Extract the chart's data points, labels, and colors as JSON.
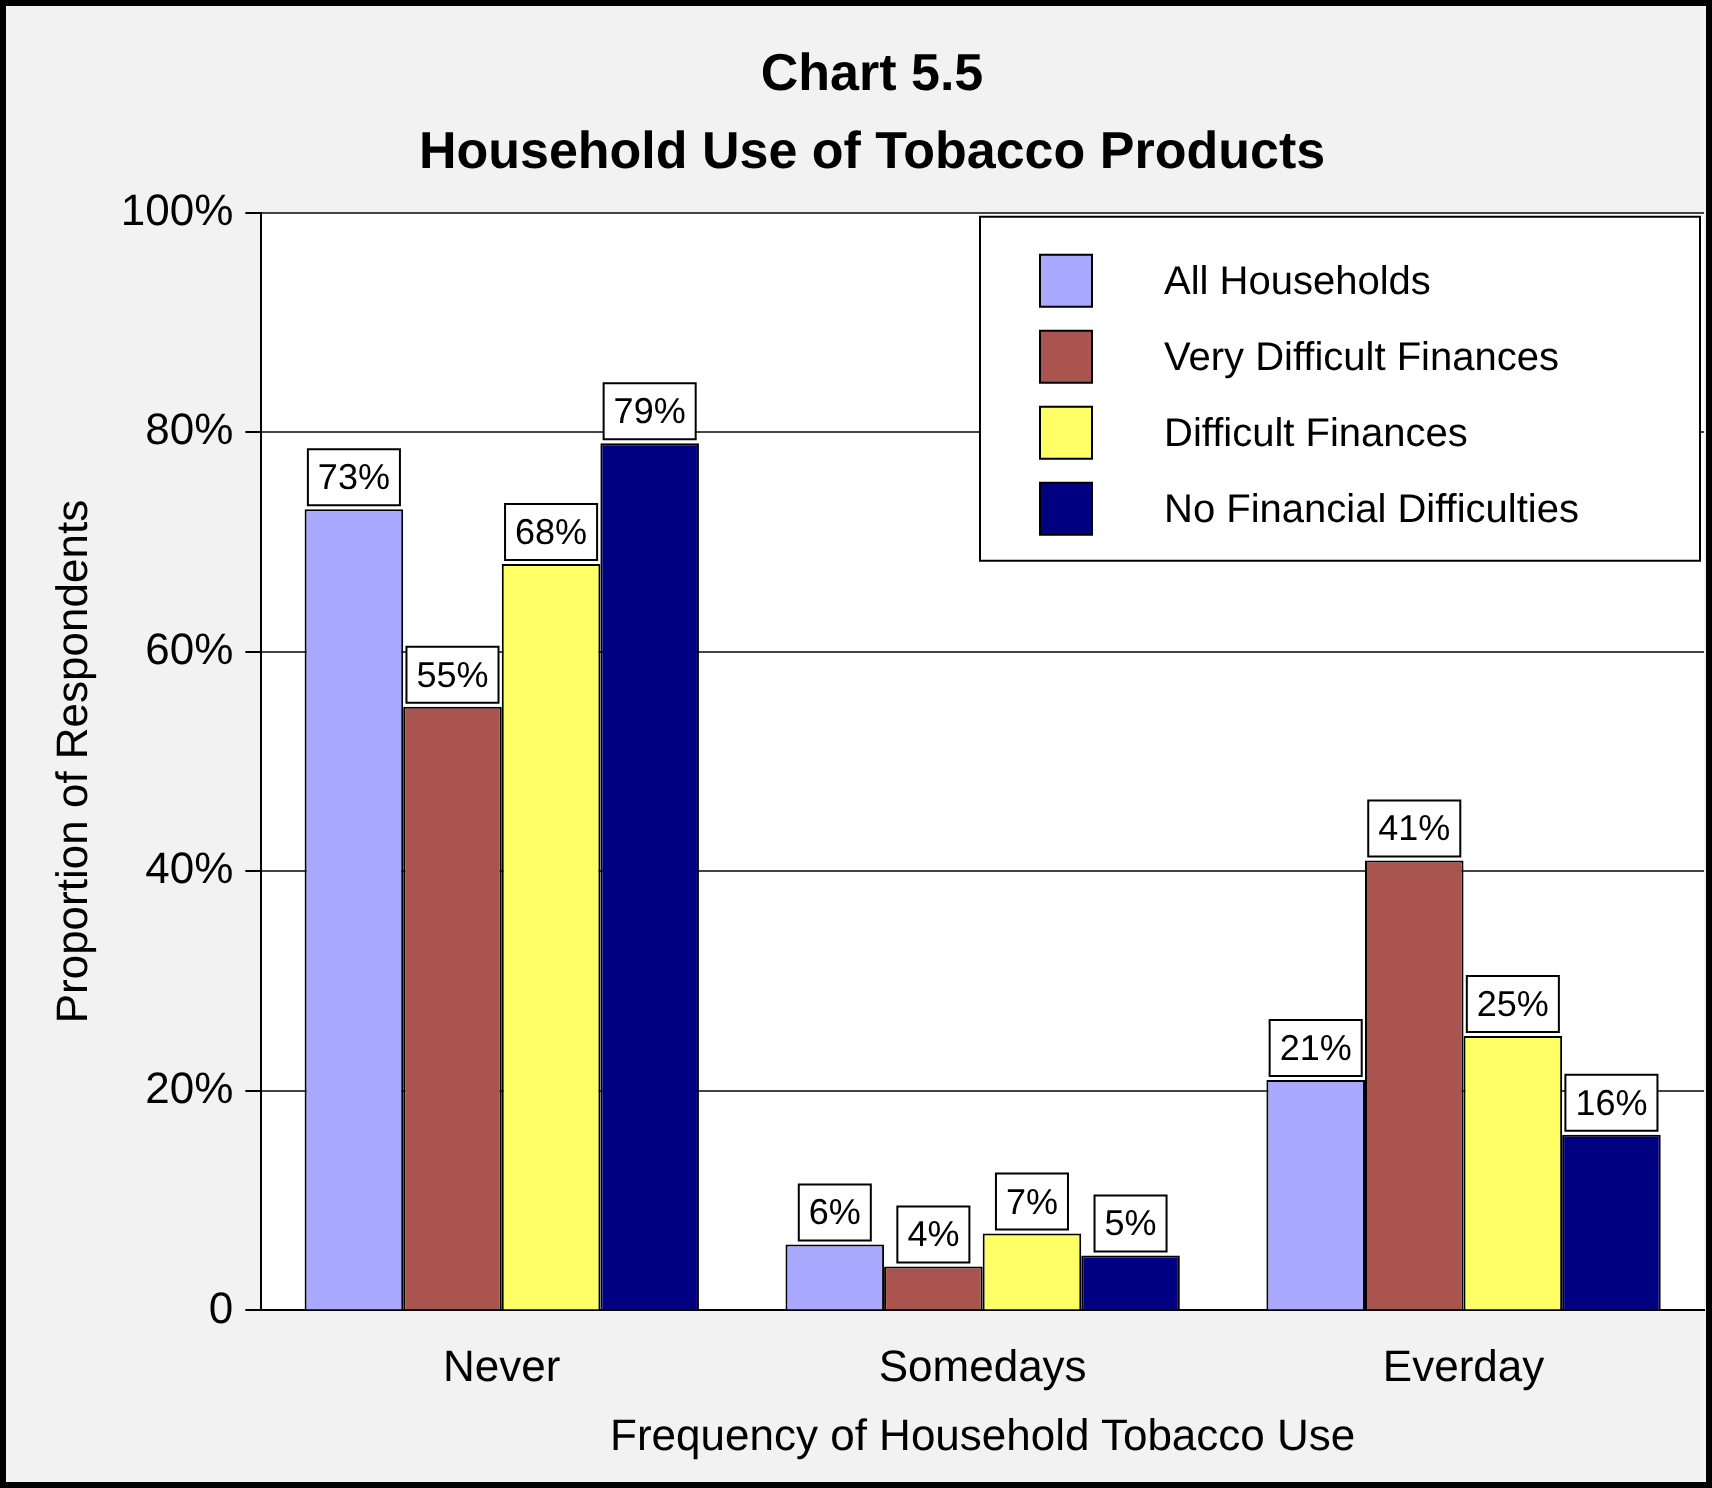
{
  "chart_data": {
    "type": "bar",
    "title": "Chart 5.5",
    "subtitle": "Household Use of Tobacco Products",
    "xlabel": "Frequency of Household Tobacco Use",
    "ylabel": "Proportion of Respondents",
    "categories": [
      "Never",
      "Somedays",
      "Everday"
    ],
    "series": [
      {
        "name": "All Households",
        "color": "#a9a9ff",
        "values": [
          73,
          6,
          21
        ],
        "value_labels": [
          "73%",
          "6%",
          "21%"
        ]
      },
      {
        "name": "Very Difficult Finances",
        "color": "#a9544f",
        "values": [
          55,
          4,
          41
        ],
        "value_labels": [
          "55%",
          "4%",
          "41%"
        ]
      },
      {
        "name": "Difficult Finances",
        "color": "#ffff66",
        "values": [
          68,
          7,
          25
        ],
        "value_labels": [
          "68%",
          "7%",
          "25%"
        ]
      },
      {
        "name": "No Financial Difficulties",
        "color": "#000080",
        "values": [
          79,
          5,
          16
        ],
        "value_labels": [
          "79%",
          "5%",
          "16%"
        ]
      }
    ],
    "ylim": [
      0,
      100
    ],
    "yticks": [
      {
        "value": 0,
        "label": "0"
      },
      {
        "value": 20,
        "label": "20%"
      },
      {
        "value": 40,
        "label": "40%"
      },
      {
        "value": 60,
        "label": "60%"
      },
      {
        "value": 80,
        "label": "80%"
      },
      {
        "value": 100,
        "label": "100%"
      }
    ],
    "grid": "y",
    "legend": "top right"
  }
}
